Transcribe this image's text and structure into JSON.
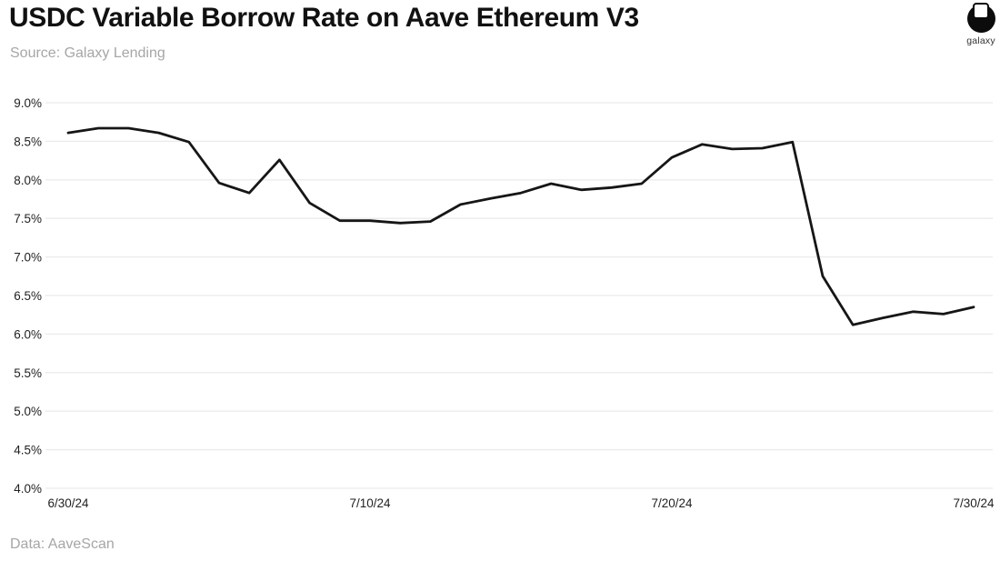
{
  "header": {
    "title": "USDC Variable Borrow Rate on Aave Ethereum V3",
    "source": "Source: Galaxy Lending",
    "logo_label": "galaxy"
  },
  "footer": {
    "data_note": "Data: AaveScan"
  },
  "colors": {
    "line": "#161616",
    "grid": "#ebebeb",
    "tick_text": "#222222",
    "muted_text": "#a6a6a6"
  },
  "chart_data": {
    "type": "line",
    "title": "USDC Variable Borrow Rate on Aave Ethereum V3",
    "xlabel": "",
    "ylabel": "",
    "ylim": [
      4.0,
      9.0
    ],
    "grid": "horizontal",
    "legend": "none",
    "y_ticks": [
      9.0,
      8.5,
      8.0,
      7.5,
      7.0,
      6.5,
      6.0,
      5.5,
      5.0,
      4.5,
      4.0
    ],
    "y_tick_labels": [
      "9.0%",
      "8.5%",
      "8.0%",
      "7.5%",
      "7.0%",
      "6.5%",
      "6.0%",
      "5.5%",
      "5.0%",
      "4.5%",
      "4.0%"
    ],
    "x": [
      "6/30/24",
      "7/1/24",
      "7/2/24",
      "7/3/24",
      "7/4/24",
      "7/5/24",
      "7/6/24",
      "7/7/24",
      "7/8/24",
      "7/9/24",
      "7/10/24",
      "7/11/24",
      "7/12/24",
      "7/13/24",
      "7/14/24",
      "7/15/24",
      "7/16/24",
      "7/17/24",
      "7/18/24",
      "7/19/24",
      "7/20/24",
      "7/21/24",
      "7/22/24",
      "7/23/24",
      "7/24/24",
      "7/25/24",
      "7/26/24",
      "7/27/24",
      "7/28/24",
      "7/29/24",
      "7/30/24"
    ],
    "series": [
      {
        "name": "USDC variable borrow rate (%)",
        "values": [
          8.61,
          8.67,
          8.67,
          8.61,
          8.49,
          7.96,
          7.83,
          8.26,
          7.7,
          7.47,
          7.47,
          7.44,
          7.46,
          7.68,
          7.76,
          7.83,
          7.95,
          7.87,
          7.9,
          7.95,
          8.29,
          8.46,
          8.4,
          8.41,
          8.49,
          6.75,
          6.12,
          6.21,
          6.29,
          6.26,
          6.35
        ]
      }
    ],
    "x_ticks": [
      {
        "index": 0,
        "label": "6/30/24"
      },
      {
        "index": 10,
        "label": "7/10/24"
      },
      {
        "index": 20,
        "label": "7/20/24"
      },
      {
        "index": 30,
        "label": "7/30/24"
      }
    ]
  }
}
